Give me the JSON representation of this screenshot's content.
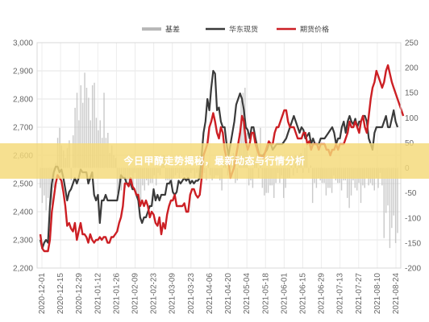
{
  "banner": {
    "text": "今日甲醇走势揭秘，最新动态与行情分析"
  },
  "chart_data": {
    "type": "line",
    "legend_position": "top-center",
    "grid": true,
    "left_axis": {
      "ylim": [
        2200,
        3000
      ],
      "ticks": [
        "2,200",
        "2,300",
        "2,400",
        "2,500",
        "2,600",
        "2,700",
        "2,800",
        "2,900",
        "3,000"
      ]
    },
    "right_axis": {
      "ylim": [
        -200,
        250
      ],
      "ticks": [
        "-200",
        "-150",
        "-100",
        "-50",
        "0",
        "50",
        "100",
        "150",
        "200",
        "250"
      ]
    },
    "x_ticks": [
      "2020-12-01",
      "2020-12-15",
      "2020-12-29",
      "2021-01-12",
      "2021-01-26",
      "2021-02-09",
      "2021-02-23",
      "2021-03-09",
      "2021-03-23",
      "2021-04-06",
      "2021-04-20",
      "2021-05-04",
      "2021-05-18",
      "2021-06-01",
      "2021-06-15",
      "2021-06-29",
      "2021-07-13",
      "2021-07-27",
      "2021-08-10",
      "2021-08-24"
    ],
    "series": [
      {
        "name": "基差",
        "axis": "right",
        "style": "bar",
        "color": "#b8b8b8",
        "values": [
          -40,
          -70,
          -55,
          -85,
          -60,
          -120,
          -75,
          -40,
          10,
          60,
          80,
          45,
          35,
          20,
          40,
          55,
          -25,
          65,
          120,
          150,
          95,
          165,
          130,
          190,
          160,
          140,
          95,
          165,
          170,
          100,
          75,
          95,
          60,
          150,
          60,
          70,
          30,
          45,
          25,
          20,
          -50,
          -35,
          -45,
          -20,
          -40,
          -25,
          -25,
          -15,
          -45,
          -10,
          -60,
          -55,
          -75,
          -35,
          -45,
          -25,
          -35,
          -30,
          -30,
          -15,
          -35,
          -10,
          -15,
          20,
          25,
          -25,
          -25,
          -35,
          -25,
          -20,
          -15,
          -10,
          -20,
          -10,
          -15,
          -15,
          -20,
          -30,
          -10,
          -5,
          -20,
          -10,
          -20,
          15,
          -10,
          -10,
          -25,
          10,
          -15,
          -25,
          -20,
          -15,
          -15,
          -25,
          -45,
          10,
          30,
          -15,
          -10,
          15,
          30,
          -30,
          -25,
          70,
          135,
          150,
          160,
          70,
          -35,
          -25,
          -40,
          20,
          45,
          -20,
          80,
          -40,
          -55,
          -50,
          -50,
          -35,
          -35,
          -60,
          -30,
          -10,
          -30,
          -15,
          -60,
          -40,
          -20,
          -20,
          5,
          -15,
          25,
          -10,
          25,
          30,
          -10,
          40,
          55,
          -10,
          5,
          -70,
          -30,
          -40,
          -20,
          -25,
          -30,
          -30,
          -55,
          -40,
          -40,
          -50,
          -15,
          -25,
          -30,
          -30,
          -45,
          -25,
          -25,
          -60,
          -80,
          -55,
          -25,
          -40,
          -45,
          -30,
          -70,
          -35,
          -40,
          -20,
          -35,
          -30,
          -35,
          -45,
          -20,
          -40,
          -10,
          -35,
          -140,
          -90,
          -75,
          -160,
          -120,
          -95,
          -150,
          -130
        ]
      },
      {
        "name": "华东现货",
        "axis": "left",
        "style": "line",
        "color": "#3a3a3a",
        "values": [
          2300,
          2270,
          2290,
          2300,
          2290,
          2420,
          2500,
          2540,
          2560,
          2560,
          2540,
          2550,
          2520,
          2480,
          2440,
          2470,
          2480,
          2500,
          2520,
          2500,
          2520,
          2550,
          2540,
          2540,
          2540,
          2500,
          2520,
          2540,
          2460,
          2440,
          2460,
          2360,
          2440,
          2440,
          2460,
          2440,
          2440,
          2440,
          2440,
          2440,
          2440,
          2480,
          2530,
          2520,
          2520,
          2500,
          2500,
          2500,
          2480,
          2480,
          2460,
          2440,
          2380,
          2360,
          2380,
          2380,
          2400,
          2420,
          2420,
          2480,
          2440,
          2460,
          2440,
          2460,
          2460,
          2460,
          2500,
          2500,
          2510,
          2470,
          2460,
          2470,
          2510,
          2500,
          2510,
          2520,
          2510,
          2520,
          2500,
          2510,
          2500,
          2510,
          2510,
          2520,
          2600,
          2680,
          2720,
          2800,
          2760,
          2840,
          2900,
          2890,
          2760,
          2770,
          2720,
          2700,
          2700,
          2640,
          2600,
          2640,
          2680,
          2720,
          2780,
          2800,
          2820,
          2800,
          2760,
          2700,
          2690,
          2660,
          2700,
          2700,
          2660,
          2630,
          2600,
          2600,
          2600,
          2610,
          2620,
          2640,
          2640,
          2620,
          2630,
          2640,
          2640,
          2640,
          2640,
          2650,
          2660,
          2680,
          2700,
          2720,
          2740,
          2720,
          2700,
          2680,
          2700,
          2690,
          2660,
          2670,
          2680,
          2640,
          2660,
          2640,
          2640,
          2640,
          2660,
          2660,
          2660,
          2670,
          2680,
          2690,
          2700,
          2680,
          2640,
          2660,
          2660,
          2700,
          2720,
          2680,
          2720,
          2740,
          2720,
          2710,
          2730,
          2700,
          2720,
          2720,
          2740,
          2740,
          2720,
          2660,
          2640,
          2620,
          2680,
          2700,
          2700,
          2700,
          2700,
          2720,
          2740,
          2700,
          2700,
          2730,
          2760,
          2720,
          2700
        ]
      },
      {
        "name": "期货价格",
        "axis": "left",
        "style": "line",
        "color": "#cc1f24",
        "values": [
          2320,
          2270,
          2260,
          2260,
          2260,
          2300,
          2400,
          2450,
          2500,
          2530,
          2520,
          2510,
          2470,
          2420,
          2350,
          2360,
          2340,
          2330,
          2360,
          2300,
          2330,
          2360,
          2320,
          2320,
          2310,
          2290,
          2320,
          2300,
          2290,
          2300,
          2300,
          2310,
          2300,
          2310,
          2310,
          2290,
          2290,
          2310,
          2310,
          2320,
          2330,
          2360,
          2380,
          2420,
          2500,
          2500,
          2490,
          2520,
          2490,
          2480,
          2460,
          2460,
          2420,
          2440,
          2420,
          2440,
          2420,
          2380,
          2400,
          2390,
          2360,
          2350,
          2380,
          2320,
          2360,
          2340,
          2390,
          2420,
          2440,
          2440,
          2460,
          2420,
          2420,
          2420,
          2420,
          2430,
          2400,
          2400,
          2460,
          2480,
          2480,
          2460,
          2450,
          2460,
          2520,
          2600,
          2620,
          2640,
          2700,
          2720,
          2750,
          2720,
          2680,
          2660,
          2700,
          2680,
          2620,
          2590,
          2580,
          2520,
          2540,
          2560,
          2600,
          2640,
          2680,
          2740,
          2720,
          2650,
          2620,
          2640,
          2680,
          2680,
          2640,
          2620,
          2600,
          2600,
          2590,
          2610,
          2630,
          2650,
          2640,
          2640,
          2680,
          2700,
          2700,
          2720,
          2740,
          2760,
          2760,
          2720,
          2700,
          2700,
          2700,
          2680,
          2660,
          2660,
          2660,
          2680,
          2680,
          2640,
          2650,
          2620,
          2640,
          2640,
          2640,
          2620,
          2640,
          2640,
          2640,
          2620,
          2620,
          2600,
          2620,
          2620,
          2640,
          2620,
          2640,
          2640,
          2640,
          2660,
          2680,
          2720,
          2700,
          2700,
          2720,
          2700,
          2680,
          2720,
          2740,
          2700,
          2680,
          2740,
          2800,
          2840,
          2860,
          2900,
          2880,
          2860,
          2840,
          2860,
          2900,
          2920,
          2890,
          2860,
          2840,
          2820,
          2800,
          2780,
          2760,
          2740
        ]
      }
    ]
  }
}
